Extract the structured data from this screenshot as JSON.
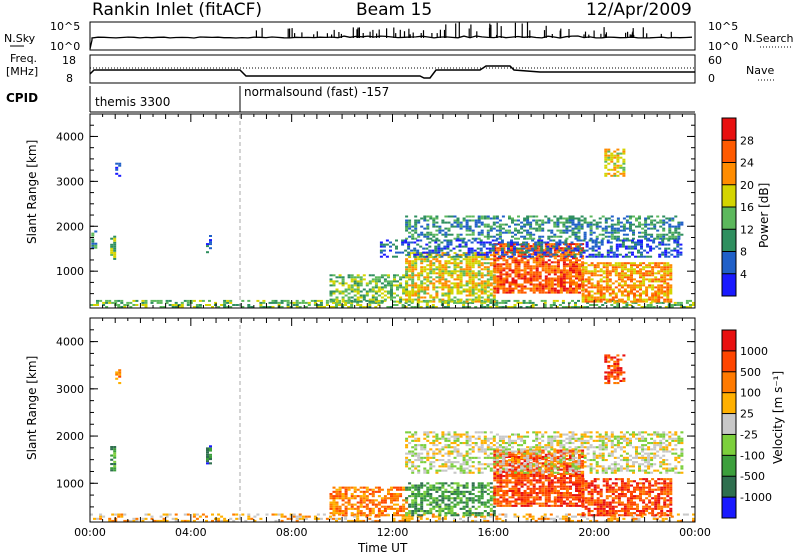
{
  "header": {
    "station": "Rankin Inlet (fitACF)",
    "beam": "Beam 15",
    "date": "12/Apr/2009"
  },
  "strips": {
    "nsky": {
      "label": "N.Sky",
      "ticks": [
        "10^5",
        "10^0"
      ],
      "right_label": "N.Search",
      "right_ticks": [
        "10^5",
        "10^0"
      ]
    },
    "freq": {
      "label_line1": "Freq.",
      "label_line2": "[MHz]",
      "ticks": [
        "18",
        "8"
      ],
      "right_label": "Nave",
      "right_ticks": [
        "60",
        "0"
      ]
    },
    "cpid": {
      "label": "CPID",
      "modes": [
        "themis 3300",
        "normalsound (fast) -157"
      ]
    }
  },
  "chart_data": [
    {
      "type": "heatmap",
      "name": "power",
      "ylabel": "Slant Range [km]",
      "ylim": [
        180,
        4500
      ],
      "yticks": [
        1000,
        2000,
        3000,
        4000
      ],
      "xlim": [
        0,
        24
      ],
      "x_tick_labels": [
        "00:00",
        "04:00",
        "08:00",
        "12:00",
        "16:00",
        "20:00",
        "00:00"
      ],
      "colorbar": {
        "label": "Power [dB]",
        "ticks": [
          "4",
          "8",
          "12",
          "16",
          "20",
          "24",
          "28"
        ],
        "colors": [
          "#1a1aff",
          "#2060c8",
          "#2f8f5f",
          "#5cb85c",
          "#d4d400",
          "#ff8c00",
          "#ff5a00",
          "#e81010"
        ]
      },
      "regions": [
        {
          "t0": 0.0,
          "t1": 24,
          "r0": 180,
          "r1": 350,
          "level": 3,
          "density": 0.5
        },
        {
          "t0": 0.8,
          "t1": 1.0,
          "r0": 1250,
          "r1": 1750,
          "level": 3,
          "density": 0.8
        },
        {
          "t0": 1.0,
          "t1": 1.2,
          "r0": 3100,
          "r1": 3400,
          "level": 1,
          "density": 0.5
        },
        {
          "t0": 0.05,
          "t1": 0.2,
          "r0": 1500,
          "r1": 1900,
          "level": 2,
          "density": 0.5
        },
        {
          "t0": 4.6,
          "t1": 4.8,
          "r0": 1400,
          "r1": 1800,
          "level": 1,
          "density": 0.6
        },
        {
          "t0": 9.5,
          "t1": 12.5,
          "r0": 300,
          "r1": 900,
          "level": 3,
          "density": 0.6
        },
        {
          "t0": 12.5,
          "t1": 16.0,
          "r0": 300,
          "r1": 1400,
          "level": 4,
          "density": 0.7
        },
        {
          "t0": 16.0,
          "t1": 19.5,
          "r0": 500,
          "r1": 1600,
          "level": 6,
          "density": 0.8
        },
        {
          "t0": 19.5,
          "t1": 23.0,
          "r0": 300,
          "r1": 1200,
          "level": 5,
          "density": 0.7
        },
        {
          "t0": 12.5,
          "t1": 23.5,
          "r0": 1700,
          "r1": 2200,
          "level": 2,
          "density": 0.5
        },
        {
          "t0": 20.4,
          "t1": 21.2,
          "r0": 3100,
          "r1": 3700,
          "level": 4,
          "density": 0.6
        },
        {
          "t0": 11.5,
          "t1": 23.5,
          "r0": 1300,
          "r1": 1700,
          "level": 1,
          "density": 0.5
        }
      ]
    },
    {
      "type": "heatmap",
      "name": "velocity",
      "ylabel": "Slant Range [km]",
      "ylim": [
        180,
        4500
      ],
      "yticks": [
        1000,
        2000,
        3000,
        4000
      ],
      "xlim": [
        0,
        24
      ],
      "x_tick_labels": [
        "00:00",
        "04:00",
        "08:00",
        "12:00",
        "16:00",
        "20:00",
        "00:00"
      ],
      "xlabel": "Time UT",
      "colorbar": {
        "label": "Velocity [m s⁻¹]",
        "ticks": [
          "1000",
          "500",
          "100",
          "25",
          "-25",
          "-100",
          "-500",
          "-1000"
        ],
        "colors": [
          "#1a1aff",
          "#2f6f4f",
          "#3c9f3c",
          "#7ccf3c",
          "#c8c8c8",
          "#ffb000",
          "#ff7a00",
          "#ff4500",
          "#e81010"
        ]
      },
      "regions": [
        {
          "t0": 0.0,
          "t1": 24,
          "r0": 180,
          "r1": 350,
          "level": 5,
          "density": 0.4
        },
        {
          "t0": 0.8,
          "t1": 1.0,
          "r0": 1250,
          "r1": 1750,
          "level": 2,
          "density": 0.8
        },
        {
          "t0": 1.0,
          "t1": 1.2,
          "r0": 3100,
          "r1": 3400,
          "level": 6,
          "density": 0.5
        },
        {
          "t0": 4.6,
          "t1": 4.8,
          "r0": 1400,
          "r1": 1800,
          "level": 1,
          "density": 0.6
        },
        {
          "t0": 9.5,
          "t1": 12.5,
          "r0": 300,
          "r1": 900,
          "level": 6,
          "density": 0.6
        },
        {
          "t0": 12.5,
          "t1": 16.0,
          "r0": 300,
          "r1": 1000,
          "level": 2,
          "density": 0.6
        },
        {
          "t0": 16.0,
          "t1": 19.5,
          "r0": 500,
          "r1": 1700,
          "level": 7,
          "density": 0.8
        },
        {
          "t0": 19.5,
          "t1": 23.0,
          "r0": 300,
          "r1": 1100,
          "level": 7,
          "density": 0.7
        },
        {
          "t0": 12.5,
          "t1": 23.5,
          "r0": 1200,
          "r1": 2100,
          "level": 4,
          "density": 0.5
        },
        {
          "t0": 20.4,
          "t1": 21.2,
          "r0": 3100,
          "r1": 3700,
          "level": 7,
          "density": 0.6
        }
      ]
    }
  ]
}
